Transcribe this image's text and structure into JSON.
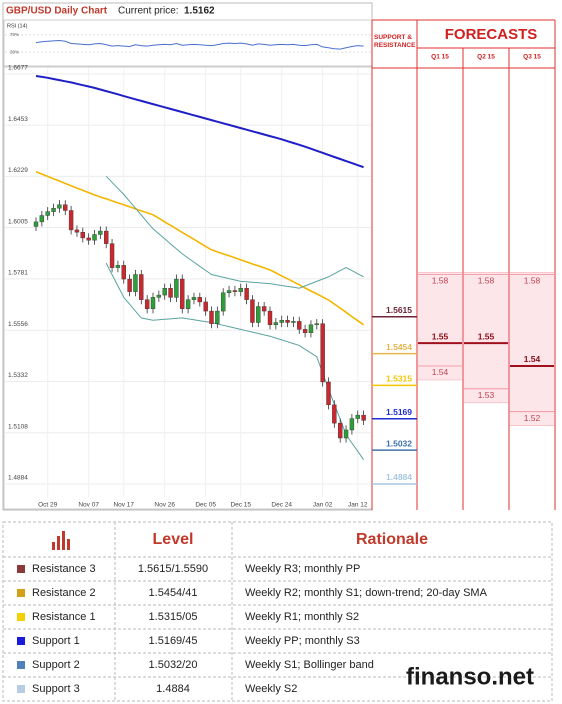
{
  "chart_data": [
    {
      "type": "candlestick",
      "title": "GBP/USD Daily Chart",
      "current_price_label": "Current price:",
      "current_price": 1.5162,
      "categories": [
        null,
        null,
        "Oct 29",
        null,
        null,
        null,
        null,
        null,
        null,
        "Nov 07",
        null,
        null,
        null,
        null,
        null,
        "Nov 17",
        null,
        null,
        null,
        null,
        null,
        null,
        "Nov 26",
        null,
        null,
        null,
        null,
        null,
        null,
        "Dec 05",
        null,
        null,
        null,
        null,
        null,
        "Dec 15",
        null,
        null,
        null,
        null,
        null,
        null,
        "Dec 24",
        null,
        null,
        null,
        null,
        null,
        null,
        "Jan 02",
        null,
        null,
        null,
        null,
        null,
        "Jan 12",
        null
      ],
      "open": [
        1.601,
        1.603,
        1.6058,
        1.6075,
        1.609,
        1.6105,
        1.608,
        1.5995,
        1.5985,
        1.596,
        1.595,
        1.5975,
        1.599,
        1.5935,
        1.583,
        1.584,
        1.578,
        1.5725,
        1.58,
        1.569,
        1.565,
        1.57,
        1.571,
        1.574,
        1.57,
        1.578,
        1.565,
        1.569,
        1.57,
        1.568,
        1.564,
        1.5585,
        1.564,
        1.572,
        1.573,
        1.5725,
        1.574,
        1.569,
        1.559,
        1.566,
        1.564,
        1.558,
        1.559,
        1.56,
        1.559,
        1.5595,
        1.556,
        1.5545,
        1.558,
        1.5585,
        1.533,
        1.523,
        1.515,
        1.5085,
        1.512,
        1.517,
        1.5185
      ],
      "high": [
        1.605,
        1.6078,
        1.6095,
        1.611,
        1.6125,
        1.6125,
        1.61,
        1.6015,
        1.6005,
        1.598,
        1.5995,
        1.601,
        1.601,
        1.5955,
        1.586,
        1.586,
        1.58,
        1.582,
        1.582,
        1.571,
        1.572,
        1.573,
        1.576,
        1.576,
        1.58,
        1.58,
        1.571,
        1.572,
        1.572,
        1.57,
        1.566,
        1.566,
        1.574,
        1.575,
        1.575,
        1.576,
        1.576,
        1.571,
        1.568,
        1.568,
        1.566,
        1.561,
        1.562,
        1.562,
        1.5615,
        1.5615,
        1.558,
        1.56,
        1.5605,
        1.5605,
        1.535,
        1.525,
        1.517,
        1.514,
        1.519,
        1.5205,
        1.5205
      ],
      "low": [
        1.599,
        1.601,
        1.6038,
        1.6055,
        1.607,
        1.606,
        1.5975,
        1.5965,
        1.594,
        1.593,
        1.593,
        1.5955,
        1.5915,
        1.581,
        1.581,
        1.576,
        1.5705,
        1.5705,
        1.567,
        1.563,
        1.563,
        1.568,
        1.569,
        1.568,
        1.568,
        1.563,
        1.563,
        1.567,
        1.566,
        1.562,
        1.5565,
        1.5565,
        1.562,
        1.57,
        1.5705,
        1.5705,
        1.567,
        1.557,
        1.557,
        1.562,
        1.556,
        1.556,
        1.557,
        1.557,
        1.557,
        1.554,
        1.5525,
        1.5525,
        1.556,
        1.531,
        1.521,
        1.513,
        1.5065,
        1.5065,
        1.51,
        1.515,
        1.5142
      ],
      "close": [
        1.603,
        1.6058,
        1.6075,
        1.609,
        1.6105,
        1.608,
        1.5995,
        1.5985,
        1.596,
        1.595,
        1.5975,
        1.599,
        1.5935,
        1.583,
        1.584,
        1.578,
        1.5725,
        1.58,
        1.569,
        1.565,
        1.57,
        1.571,
        1.574,
        1.57,
        1.578,
        1.565,
        1.569,
        1.57,
        1.568,
        1.564,
        1.5585,
        1.564,
        1.572,
        1.573,
        1.5725,
        1.574,
        1.569,
        1.559,
        1.566,
        1.564,
        1.558,
        1.559,
        1.56,
        1.559,
        1.5595,
        1.556,
        1.5545,
        1.558,
        1.5585,
        1.533,
        1.523,
        1.515,
        1.5085,
        1.512,
        1.517,
        1.5185,
        1.5162
      ],
      "up_color": "#2e9e3a",
      "down_color": "#c8282e",
      "series": [
        {
          "color": "#1f1fc8",
          "values": [
            1.6668,
            1.6664,
            1.666,
            1.6655,
            1.665,
            1.6645,
            1.664,
            1.6634,
            1.6628,
            1.6622,
            1.6616,
            1.6609,
            1.6602,
            1.6595,
            1.6588,
            1.658,
            1.6573,
            1.6566,
            1.6559,
            1.6552,
            1.6545,
            1.6538,
            1.6531,
            1.6524,
            1.6517,
            1.651,
            1.6503,
            1.6496,
            1.6489,
            1.6482,
            1.6475,
            1.6468,
            1.6461,
            1.6454,
            1.6447,
            1.644,
            1.6433,
            1.6426,
            1.6419,
            1.6412,
            1.6405,
            1.6398,
            1.6391,
            1.6383,
            1.6375,
            1.6367,
            1.6359,
            1.635,
            1.6341,
            1.6332,
            1.6323,
            1.6314,
            1.6305,
            1.6296,
            1.6287,
            1.6278,
            1.6269
          ]
        },
        {
          "color": "#f2b600",
          "values": [
            1.6249,
            1.6239,
            1.6229,
            1.6219,
            1.6209,
            1.6198,
            1.6188,
            1.6178,
            1.6168,
            1.6158,
            1.6148,
            1.6139,
            1.6131,
            1.6122,
            1.6113,
            1.6105,
            1.6096,
            1.6087,
            1.6078,
            1.607,
            1.6061,
            1.6046,
            1.603,
            1.6015,
            1.6,
            1.5984,
            1.5969,
            1.5954,
            1.5938,
            1.5923,
            1.5908,
            1.5899,
            1.589,
            1.5882,
            1.5873,
            1.5864,
            1.5855,
            1.5846,
            1.5838,
            1.5829,
            1.582,
            1.5807,
            1.5794,
            1.5781,
            1.5768,
            1.5755,
            1.5741,
            1.5728,
            1.5715,
            1.5702,
            1.5689,
            1.5671,
            1.5653,
            1.5635,
            1.5616,
            1.5598,
            1.558
          ]
        },
        {
          "color": "#5aa3a0",
          "values": [
            null,
            null,
            null,
            null,
            null,
            null,
            null,
            null,
            null,
            null,
            null,
            null,
            1.623,
            1.6203,
            1.6177,
            1.615,
            1.612,
            1.609,
            1.606,
            1.603,
            1.6,
            1.5978,
            1.5956,
            1.5934,
            1.5912,
            1.589,
            1.5872,
            1.5854,
            1.5836,
            1.5818,
            1.58,
            1.5794,
            1.5788,
            1.5782,
            1.5776,
            1.577,
            1.5768,
            1.5766,
            1.5764,
            1.5762,
            1.576,
            1.5756,
            1.5752,
            1.5748,
            1.5744,
            1.574,
            1.575,
            1.576,
            1.577,
            1.578,
            1.579,
            1.5803,
            1.5817,
            1.583,
            1.5817,
            1.5803,
            1.579
          ]
        },
        {
          "color": "#5aa3a0",
          "values": [
            null,
            null,
            null,
            null,
            null,
            null,
            null,
            null,
            null,
            null,
            null,
            null,
            1.585,
            1.58,
            1.575,
            1.57,
            1.567,
            1.564,
            1.561,
            1.5605,
            1.56,
            1.5602,
            1.5604,
            1.5606,
            1.5608,
            1.561,
            1.5606,
            1.5602,
            1.5598,
            1.5594,
            1.559,
            1.5584,
            1.5578,
            1.5572,
            1.5566,
            1.556,
            1.5554,
            1.5548,
            1.5542,
            1.5536,
            1.553,
            1.5522,
            1.5514,
            1.5506,
            1.5498,
            1.549,
            1.5473,
            1.5457,
            1.544,
            1.537,
            1.53,
            1.5233,
            1.5167,
            1.51,
            1.5063,
            1.5027,
            1.499
          ]
        }
      ],
      "ylim": [
        1.4827,
        1.6703
      ],
      "yticks": [
        1.4884,
        1.5108,
        1.5332,
        1.5556,
        1.5781,
        1.6005,
        1.6229,
        1.6453,
        1.6677
      ],
      "grid": true,
      "levels": {
        "values": [
          1.5615,
          1.5454,
          1.5315,
          1.5169,
          1.5032,
          1.4884
        ],
        "colors": [
          "#6e2437",
          "#e9b44c",
          "#f2c600",
          "#1f2fcf",
          "#3f73aa",
          "#a9c6e2"
        ]
      },
      "forecasts": {
        "support_resistance_label": "SUPPORT & RESISTANCE",
        "title": "FORECASTS",
        "columns": [
          "Q1 15",
          "Q2 15",
          "Q3 15"
        ],
        "values": [
          [
            1.58,
            1.55,
            1.54
          ],
          [
            1.58,
            1.55,
            1.53
          ],
          [
            1.58,
            1.54,
            1.52
          ]
        ]
      }
    },
    {
      "type": "line",
      "title": "RSI (14)",
      "color": "#4a6fd0",
      "values": [
        52,
        54,
        55,
        56,
        57,
        55,
        50,
        49,
        48,
        47,
        49,
        50,
        47,
        44,
        45,
        44,
        43,
        47,
        45,
        44,
        46,
        47,
        48,
        47,
        50,
        46,
        47,
        48,
        47,
        46,
        45,
        47,
        50,
        51,
        50,
        51,
        49,
        46,
        49,
        48,
        46,
        47,
        48,
        47,
        48,
        46,
        45,
        47,
        48,
        42,
        40,
        38,
        37,
        40,
        43,
        45,
        44
      ],
      "ylim": [
        0,
        100
      ],
      "yticks": [
        {
          "value": 30,
          "label": "30%"
        },
        {
          "value": 70,
          "label": "70%"
        }
      ]
    }
  ],
  "table": {
    "headers": [
      "Level",
      "Rationale"
    ],
    "swatch_colors": [
      "#8b3a3a",
      "#d4a017",
      "#f5d000",
      "#1a1adb",
      "#4f81bd",
      "#b8cce4"
    ],
    "rows": [
      [
        "Resistance 3",
        "1.5615/1.5590",
        "Weekly R3; monthly PP"
      ],
      [
        "Resistance 2",
        "1.5454/41",
        "Weekly R2; monthly S1; down-trend; 20-day SMA"
      ],
      [
        "Resistance 1",
        "1.5315/05",
        "Weekly R1; monthly S2"
      ],
      [
        "Support 1",
        "1.5169/45",
        "Weekly PP; monthly S3"
      ],
      [
        "Support 2",
        "1.5032/20",
        "Weekly S1; Bollinger band"
      ],
      [
        "Support 3",
        "1.4884",
        "Weekly S2"
      ]
    ]
  },
  "watermark": "finanso.net"
}
